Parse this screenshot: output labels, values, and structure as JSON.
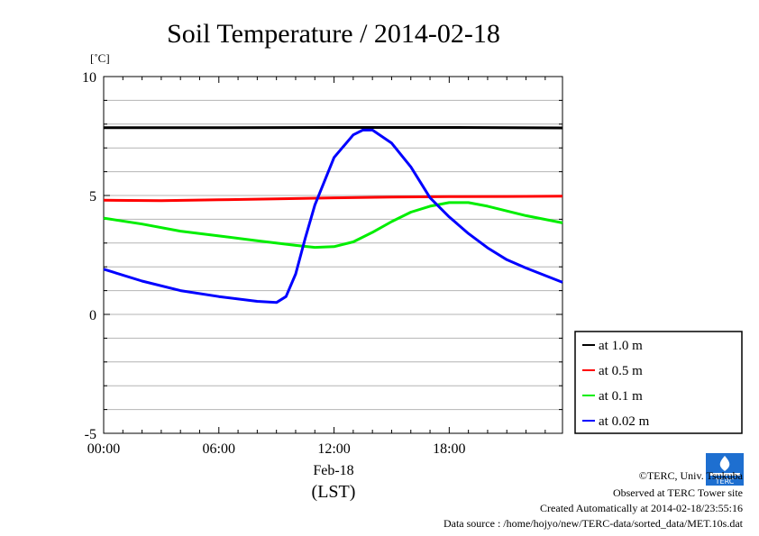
{
  "chart_data": {
    "type": "line",
    "title": "Soil Temperature / 2014-02-18",
    "yunit": "[˚C]",
    "xlabel": "(LST)",
    "date_label": "Feb-18",
    "xlim": [
      0,
      23.9
    ],
    "ylim": [
      -5,
      10
    ],
    "yticks": [
      10,
      5,
      0,
      -5
    ],
    "xticks": [
      {
        "x": 0,
        "label": "00:00"
      },
      {
        "x": 6,
        "label": "06:00"
      },
      {
        "x": 12,
        "label": "12:00"
      },
      {
        "x": 18,
        "label": "18:00"
      }
    ],
    "legend_position": "right-bottom",
    "series": [
      {
        "name": "at 1.0 m",
        "color": "#000000",
        "x": [
          0,
          6,
          12,
          18,
          23.9
        ],
        "y": [
          7.85,
          7.85,
          7.86,
          7.86,
          7.84
        ]
      },
      {
        "name": "at 0.5 m",
        "color": "#ff0000",
        "x": [
          0,
          3,
          6,
          9,
          12,
          15,
          18,
          21,
          23.9
        ],
        "y": [
          4.8,
          4.78,
          4.82,
          4.86,
          4.9,
          4.93,
          4.95,
          4.96,
          4.97
        ]
      },
      {
        "name": "at 0.1 m",
        "color": "#00ee00",
        "x": [
          0,
          2,
          4,
          6,
          8,
          10,
          11,
          12,
          13,
          14,
          15,
          16,
          17,
          18,
          19,
          20,
          21,
          22,
          23.9
        ],
        "y": [
          4.05,
          3.8,
          3.5,
          3.3,
          3.1,
          2.9,
          2.82,
          2.85,
          3.05,
          3.45,
          3.9,
          4.3,
          4.55,
          4.7,
          4.7,
          4.55,
          4.35,
          4.15,
          3.85
        ]
      },
      {
        "name": "at 0.02 m",
        "color": "#0000ff",
        "x": [
          0,
          2,
          4,
          6,
          8,
          9,
          9.5,
          10,
          10.5,
          11,
          12,
          13,
          13.5,
          14,
          15,
          16,
          17,
          18,
          19,
          20,
          21,
          22,
          23.9
        ],
        "y": [
          1.9,
          1.4,
          1.0,
          0.75,
          0.55,
          0.5,
          0.75,
          1.7,
          3.2,
          4.6,
          6.6,
          7.55,
          7.75,
          7.75,
          7.2,
          6.2,
          4.9,
          4.1,
          3.4,
          2.8,
          2.3,
          1.95,
          1.35
        ]
      }
    ]
  },
  "credits": {
    "copyright": "©TERC, Univ. Tsukuba",
    "observed": "Observed at TERC Tower site",
    "created": "Created Automatically at 2014-02-18/23:55:16",
    "source": "Data source : /home/hojyo/new/TERC-data/sorted_data/MET.10s.dat"
  },
  "logo": {
    "label": "TERC",
    "color": "#1e6fd0"
  }
}
